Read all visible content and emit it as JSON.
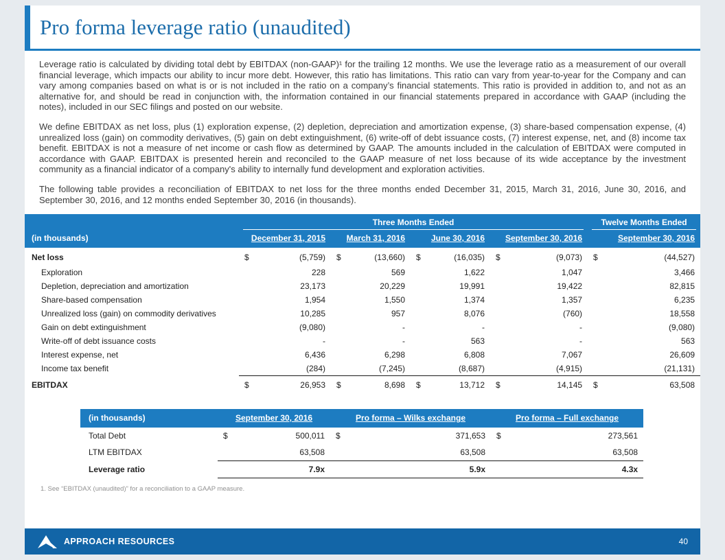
{
  "slide": {
    "title": "Pro forma leverage ratio (unaudited)",
    "footnote": "1. See “EBITDAX (unaudited)”  for a reconciliation  to a GAAP measure.",
    "footer_brand": "APPROACH RESOURCES",
    "page_number": "40"
  },
  "colors": {
    "accent_blue": "#1d7cc1",
    "footer_blue": "#1265a7",
    "title_blue": "#1c6dab",
    "page_background": "#e7ebef"
  },
  "icons": {
    "logo": "approach-logo-icon"
  },
  "paragraphs": [
    "Leverage ratio is calculated by dividing total debt by EBITDAX (non-GAAP)¹ for the trailing 12 months. We use the leverage ratio as a measurement of our overall financial leverage, which impacts our ability to incur more debt. However, this ratio has limitations. This ratio can vary from year-to-year for the Company and can vary among companies based on what is or is not included in the ratio on a company’s financial statements. This ratio is provided in addition to, and not as an alternative for, and should be read in conjunction with, the information contained in our financial statements prepared in accordance with GAAP (including the notes), included in our SEC filings and posted on our website.",
    "We define EBITDAX as net loss, plus (1) exploration expense, (2) depletion, depreciation and amortization expense, (3) share-based compensation expense, (4) unrealized loss (gain) on commodity derivatives, (5) gain on debt extinguishment, (6) write-off of debt issuance costs, (7) interest expense, net, and (8) income tax benefit. EBITDAX is not a measure of net income or cash flow as determined by GAAP. The amounts included in the calculation of EBITDAX were computed in accordance with GAAP. EBITDAX is presented herein and reconciled to the GAAP measure of net loss because of its wide acceptance by the investment community as a financial indicator of a company's ability to internally fund development and exploration activities.",
    "The following table provides a reconciliation of EBITDAX to net loss for the three months ended December 31, 2015, March 31, 2016, June 30, 2016, and September 30, 2016, and 12 months ended September 30, 2016 (in thousands)."
  ],
  "main_table": {
    "group_headers": [
      "Three Months Ended",
      "Twelve Months Ended"
    ],
    "label_header": "(in thousands)",
    "columns": [
      "December 31, 2015",
      "March 31, 2016",
      "June 30, 2016",
      "September 30, 2016",
      "September 30, 2016"
    ],
    "rows": [
      {
        "label": "Net loss",
        "bold": true,
        "dollar": true,
        "values": [
          "(5,759)",
          "(13,660)",
          "(16,035)",
          "(9,073)",
          "(44,527)"
        ]
      },
      {
        "label": "Exploration",
        "indent": true,
        "values": [
          "228",
          "569",
          "1,622",
          "1,047",
          "3,466"
        ]
      },
      {
        "label": "Depletion, depreciation and amortization",
        "indent": true,
        "values": [
          "23,173",
          "20,229",
          "19,991",
          "19,422",
          "82,815"
        ]
      },
      {
        "label": "Share-based compensation",
        "indent": true,
        "values": [
          "1,954",
          "1,550",
          "1,374",
          "1,357",
          "6,235"
        ]
      },
      {
        "label": "Unrealized loss (gain) on commodity derivatives",
        "indent": true,
        "values": [
          "10,285",
          "957",
          "8,076",
          "(760)",
          "18,558"
        ]
      },
      {
        "label": "Gain on debt extinguishment",
        "indent": true,
        "values": [
          "(9,080)",
          "-",
          "-",
          "-",
          "(9,080)"
        ]
      },
      {
        "label": "Write-off of debt issuance costs",
        "indent": true,
        "values": [
          "-",
          "-",
          "563",
          "-",
          "563"
        ]
      },
      {
        "label": "Interest expense, net",
        "indent": true,
        "values": [
          "6,436",
          "6,298",
          "6,808",
          "7,067",
          "26,609"
        ]
      },
      {
        "label": "Income tax benefit",
        "indent": true,
        "rule": true,
        "values": [
          "(284)",
          "(7,245)",
          "(8,687)",
          "(4,915)",
          "(21,131)"
        ]
      },
      {
        "label": "EBITDAX",
        "bold": true,
        "dollar": true,
        "values": [
          "26,953",
          "8,698",
          "13,712",
          "14,145",
          "63,508"
        ]
      }
    ]
  },
  "second_table": {
    "label_header": "(in thousands)",
    "columns": [
      "September 30, 2016",
      "Pro forma – Wilks exchange",
      "Pro forma – Full exchange"
    ],
    "rows": [
      {
        "label": "Total Debt",
        "dollar": true,
        "values": [
          "500,011",
          "371,653",
          "273,561"
        ]
      },
      {
        "label": "LTM EBITDAX",
        "rule": true,
        "values": [
          "63,508",
          "63,508",
          "63,508"
        ]
      },
      {
        "label": "Leverage ratio",
        "bold": true,
        "bold_vals": true,
        "rule": true,
        "values": [
          "7.9x",
          "5.9x",
          "4.3x"
        ]
      }
    ]
  }
}
